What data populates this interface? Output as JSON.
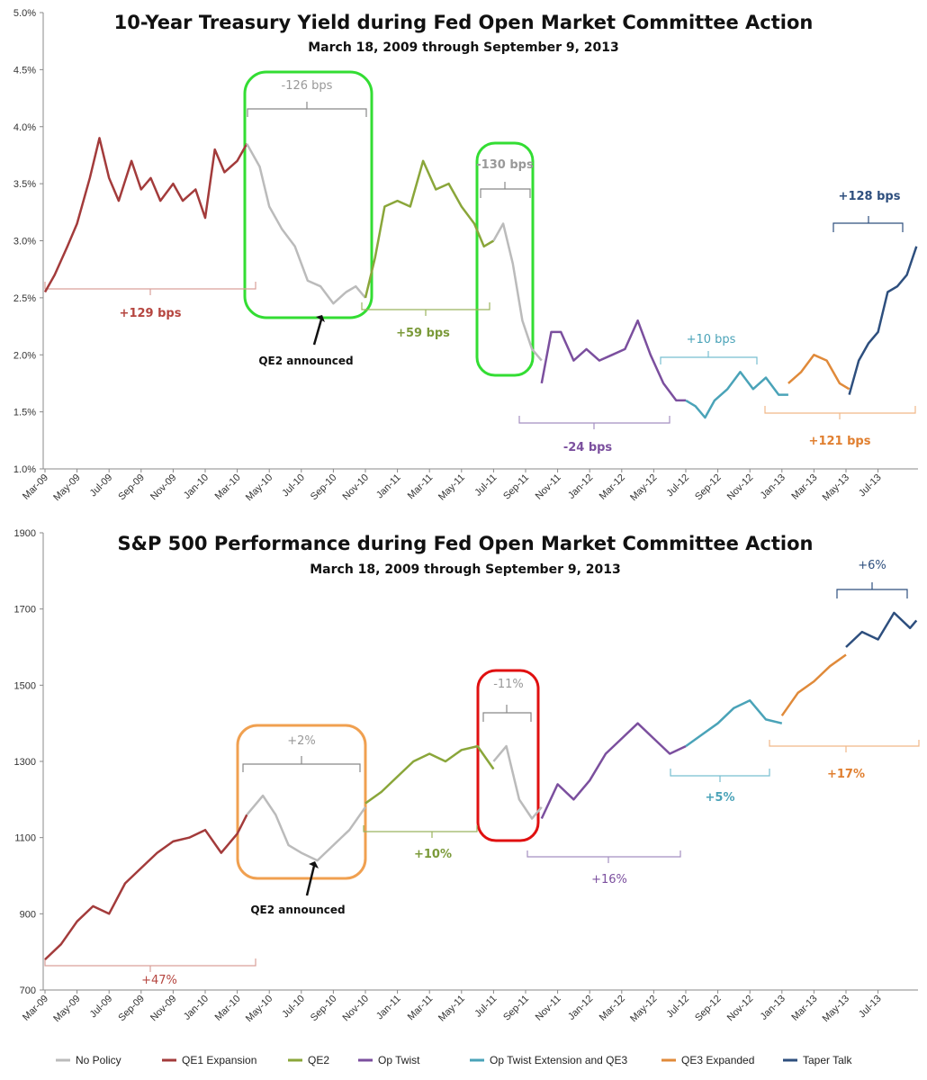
{
  "chart_data": [
    {
      "type": "line",
      "title": "10-Year Treasury Yield during Fed Open Market Committee Action",
      "subtitle": "March 18, 2009 through September 9, 2013",
      "xlabel": "",
      "ylabel": "",
      "x_tick_labels": [
        "Mar-09",
        "May-09",
        "Jul-09",
        "Sep-09",
        "Nov-09",
        "Jan-10",
        "Mar-10",
        "May-10",
        "Jul-10",
        "Sep-10",
        "Nov-10",
        "Jan-11",
        "Mar-11",
        "May-11",
        "Jul-11",
        "Sep-11",
        "Nov-11",
        "Jan-12",
        "Mar-12",
        "May-12",
        "Jul-12",
        "Sep-12",
        "Nov-12",
        "Jan-13",
        "Mar-13",
        "May-13",
        "Jul-13"
      ],
      "y_tick_labels": [
        "1.0%",
        "1.5%",
        "2.0%",
        "2.5%",
        "3.0%",
        "3.5%",
        "4.0%",
        "4.5%",
        "5.0%"
      ],
      "ylim": [
        1.0,
        5.0
      ],
      "grid": false,
      "series": [
        {
          "name": "QE1 Expansion",
          "color": "#a33b3b",
          "points": [
            [
              0,
              2.55
            ],
            [
              0.3,
              2.7
            ],
            [
              0.7,
              2.95
            ],
            [
              1.0,
              3.15
            ],
            [
              1.4,
              3.55
            ],
            [
              1.7,
              3.9
            ],
            [
              2.0,
              3.55
            ],
            [
              2.3,
              3.35
            ],
            [
              2.7,
              3.7
            ],
            [
              3.0,
              3.45
            ],
            [
              3.3,
              3.55
            ],
            [
              3.6,
              3.35
            ],
            [
              4.0,
              3.5
            ],
            [
              4.3,
              3.35
            ],
            [
              4.7,
              3.45
            ],
            [
              5.0,
              3.2
            ],
            [
              5.3,
              3.8
            ],
            [
              5.6,
              3.6
            ],
            [
              6.0,
              3.7
            ],
            [
              6.3,
              3.85
            ]
          ]
        },
        {
          "name": "No Policy",
          "color": "#bbbbbb",
          "points": [
            [
              6.3,
              3.85
            ],
            [
              6.7,
              3.65
            ],
            [
              7.0,
              3.3
            ],
            [
              7.4,
              3.1
            ],
            [
              7.8,
              2.95
            ],
            [
              8.2,
              2.65
            ],
            [
              8.6,
              2.6
            ],
            [
              9.0,
              2.45
            ],
            [
              9.4,
              2.55
            ],
            [
              9.7,
              2.6
            ],
            [
              10.0,
              2.5
            ]
          ]
        },
        {
          "name": "QE2",
          "color": "#8aa63a",
          "points": [
            [
              10.0,
              2.5
            ],
            [
              10.3,
              2.85
            ],
            [
              10.6,
              3.3
            ],
            [
              11.0,
              3.35
            ],
            [
              11.4,
              3.3
            ],
            [
              11.8,
              3.7
            ],
            [
              12.2,
              3.45
            ],
            [
              12.6,
              3.5
            ],
            [
              13.0,
              3.3
            ],
            [
              13.4,
              3.15
            ],
            [
              13.7,
              2.95
            ],
            [
              14.0,
              3.0
            ]
          ]
        },
        {
          "name": "No Policy",
          "color": "#bbbbbb",
          "points": [
            [
              14.0,
              3.0
            ],
            [
              14.3,
              3.15
            ],
            [
              14.6,
              2.8
            ],
            [
              14.9,
              2.3
            ],
            [
              15.2,
              2.05
            ],
            [
              15.5,
              1.95
            ]
          ]
        },
        {
          "name": "Op Twist",
          "color": "#7b4f9e",
          "points": [
            [
              15.5,
              1.75
            ],
            [
              15.8,
              2.2
            ],
            [
              16.1,
              2.2
            ],
            [
              16.5,
              1.95
            ],
            [
              16.9,
              2.05
            ],
            [
              17.3,
              1.95
            ],
            [
              17.7,
              2.0
            ],
            [
              18.1,
              2.05
            ],
            [
              18.5,
              2.3
            ],
            [
              18.9,
              2.0
            ],
            [
              19.3,
              1.75
            ],
            [
              19.7,
              1.6
            ],
            [
              20.0,
              1.6
            ]
          ]
        },
        {
          "name": "Op Twist Extension and QE3",
          "color": "#4aa3b8",
          "points": [
            [
              20.0,
              1.6
            ],
            [
              20.3,
              1.55
            ],
            [
              20.6,
              1.45
            ],
            [
              20.9,
              1.6
            ],
            [
              21.3,
              1.7
            ],
            [
              21.7,
              1.85
            ],
            [
              22.1,
              1.7
            ],
            [
              22.5,
              1.8
            ],
            [
              22.9,
              1.65
            ],
            [
              23.2,
              1.65
            ]
          ]
        },
        {
          "name": "QE3 Expanded",
          "color": "#e08a3a",
          "points": [
            [
              23.2,
              1.75
            ],
            [
              23.6,
              1.85
            ],
            [
              24.0,
              2.0
            ],
            [
              24.4,
              1.95
            ],
            [
              24.8,
              1.75
            ],
            [
              25.1,
              1.7
            ]
          ]
        },
        {
          "name": "Taper Talk",
          "color": "#2e4f7e",
          "points": [
            [
              25.1,
              1.65
            ],
            [
              25.4,
              1.95
            ],
            [
              25.7,
              2.1
            ],
            [
              26.0,
              2.2
            ],
            [
              26.3,
              2.55
            ],
            [
              26.6,
              2.6
            ],
            [
              26.9,
              2.7
            ],
            [
              27.2,
              2.95
            ]
          ]
        }
      ],
      "annotations": [
        {
          "text": "+129 bps",
          "color": "#b5453f"
        },
        {
          "text": "-126 bps",
          "color": "#999999"
        },
        {
          "text": "+59 bps",
          "color": "#7b9a3a"
        },
        {
          "text": "-130 bps",
          "color": "#999999"
        },
        {
          "text": "-24 bps",
          "color": "#7b4f9e"
        },
        {
          "text": "+10 bps",
          "color": "#4aa3b8"
        },
        {
          "text": "+121 bps",
          "color": "#e07f30"
        },
        {
          "text": "+128 bps",
          "color": "#2e4f7e"
        },
        {
          "text": "QE2 announced",
          "color": "#111111"
        }
      ]
    },
    {
      "type": "line",
      "title": "S&P 500 Performance during Fed Open Market Committee Action",
      "subtitle": "March 18, 2009 through September 9, 2013",
      "xlabel": "",
      "ylabel": "",
      "x_tick_labels": [
        "Mar-09",
        "May-09",
        "Jul-09",
        "Sep-09",
        "Nov-09",
        "Jan-10",
        "Mar-10",
        "May-10",
        "Jul-10",
        "Sep-10",
        "Nov-10",
        "Jan-11",
        "Mar-11",
        "May-11",
        "Jul-11",
        "Sep-11",
        "Nov-11",
        "Jan-12",
        "Mar-12",
        "May-12",
        "Jul-12",
        "Sep-12",
        "Nov-12",
        "Jan-13",
        "Mar-13",
        "May-13",
        "Jul-13"
      ],
      "y_tick_labels": [
        "700",
        "900",
        "1100",
        "1300",
        "1500",
        "1700",
        "1900"
      ],
      "ylim": [
        700,
        1900
      ],
      "grid": false,
      "series": [
        {
          "name": "QE1 Expansion",
          "color": "#a33b3b",
          "points": [
            [
              0,
              780
            ],
            [
              0.5,
              820
            ],
            [
              1.0,
              880
            ],
            [
              1.5,
              920
            ],
            [
              2.0,
              900
            ],
            [
              2.5,
              980
            ],
            [
              3.0,
              1020
            ],
            [
              3.5,
              1060
            ],
            [
              4.0,
              1090
            ],
            [
              4.5,
              1100
            ],
            [
              5.0,
              1120
            ],
            [
              5.5,
              1060
            ],
            [
              6.0,
              1110
            ],
            [
              6.3,
              1160
            ]
          ]
        },
        {
          "name": "No Policy",
          "color": "#bbbbbb",
          "points": [
            [
              6.3,
              1160
            ],
            [
              6.8,
              1210
            ],
            [
              7.2,
              1160
            ],
            [
              7.6,
              1080
            ],
            [
              8.0,
              1060
            ],
            [
              8.5,
              1040
            ],
            [
              9.0,
              1080
            ],
            [
              9.5,
              1120
            ],
            [
              10.0,
              1180
            ]
          ]
        },
        {
          "name": "QE2",
          "color": "#8aa63a",
          "points": [
            [
              10.0,
              1190
            ],
            [
              10.5,
              1220
            ],
            [
              11.0,
              1260
            ],
            [
              11.5,
              1300
            ],
            [
              12.0,
              1320
            ],
            [
              12.5,
              1300
            ],
            [
              13.0,
              1330
            ],
            [
              13.5,
              1340
            ],
            [
              14.0,
              1280
            ]
          ]
        },
        {
          "name": "No Policy",
          "color": "#bbbbbb",
          "points": [
            [
              14.0,
              1300
            ],
            [
              14.4,
              1340
            ],
            [
              14.8,
              1200
            ],
            [
              15.2,
              1150
            ],
            [
              15.5,
              1180
            ]
          ]
        },
        {
          "name": "Op Twist",
          "color": "#7b4f9e",
          "points": [
            [
              15.5,
              1150
            ],
            [
              16.0,
              1240
            ],
            [
              16.5,
              1200
            ],
            [
              17.0,
              1250
            ],
            [
              17.5,
              1320
            ],
            [
              18.0,
              1360
            ],
            [
              18.5,
              1400
            ],
            [
              19.0,
              1360
            ],
            [
              19.5,
              1320
            ],
            [
              20.0,
              1340
            ]
          ]
        },
        {
          "name": "Op Twist Extension and QE3",
          "color": "#4aa3b8",
          "points": [
            [
              20.0,
              1340
            ],
            [
              20.5,
              1370
            ],
            [
              21.0,
              1400
            ],
            [
              21.5,
              1440
            ],
            [
              22.0,
              1460
            ],
            [
              22.5,
              1410
            ],
            [
              23.0,
              1400
            ]
          ]
        },
        {
          "name": "QE3 Expanded",
          "color": "#e08a3a",
          "points": [
            [
              23.0,
              1420
            ],
            [
              23.5,
              1480
            ],
            [
              24.0,
              1510
            ],
            [
              24.5,
              1550
            ],
            [
              25.0,
              1580
            ]
          ]
        },
        {
          "name": "Taper Talk",
          "color": "#2e4f7e",
          "points": [
            [
              25.0,
              1600
            ],
            [
              25.5,
              1640
            ],
            [
              26.0,
              1620
            ],
            [
              26.5,
              1690
            ],
            [
              27.0,
              1650
            ],
            [
              27.2,
              1670
            ]
          ]
        }
      ],
      "annotations": [
        {
          "text": "+47%",
          "color": "#b5453f"
        },
        {
          "text": "+2%",
          "color": "#999999"
        },
        {
          "text": "+10%",
          "color": "#7b9a3a"
        },
        {
          "text": "-11%",
          "color": "#999999"
        },
        {
          "text": "+16%",
          "color": "#7b4f9e"
        },
        {
          "text": "+5%",
          "color": "#4aa3b8"
        },
        {
          "text": "+17%",
          "color": "#e07f30"
        },
        {
          "text": "+6%",
          "color": "#2e4f7e"
        },
        {
          "text": "QE2 announced",
          "color": "#111111"
        }
      ]
    }
  ],
  "legend": [
    {
      "label": "No Policy",
      "color": "#bbbbbb"
    },
    {
      "label": "QE1 Expansion",
      "color": "#a33b3b"
    },
    {
      "label": "QE2",
      "color": "#8aa63a"
    },
    {
      "label": "Op Twist",
      "color": "#7b4f9e"
    },
    {
      "label": "Op Twist Extension and QE3",
      "color": "#4aa3b8"
    },
    {
      "label": "QE3 Expanded",
      "color": "#e08a3a"
    },
    {
      "label": "Taper Talk",
      "color": "#2e4f7e"
    }
  ]
}
